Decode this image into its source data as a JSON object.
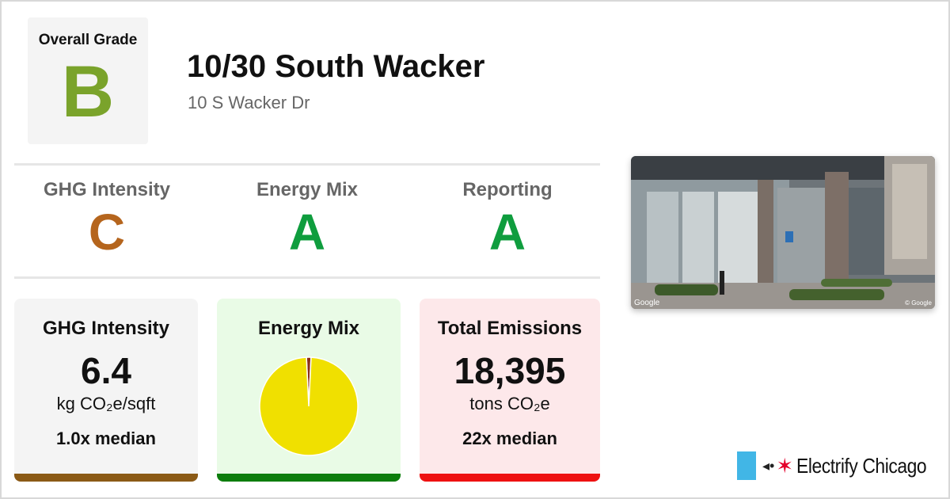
{
  "overall": {
    "label": "Overall Grade",
    "grade": "B",
    "color": "#7aa32b"
  },
  "building": {
    "name": "10/30 South Wacker",
    "address": "10 S Wacker Dr"
  },
  "sub_grades": [
    {
      "label": "GHG Intensity",
      "grade": "C",
      "color": "#b5651d"
    },
    {
      "label": "Energy Mix",
      "grade": "A",
      "color": "#0f9d3e"
    },
    {
      "label": "Reporting",
      "grade": "A",
      "color": "#0f9d3e"
    }
  ],
  "photo": {
    "attribution_left": "Google",
    "attribution_right": "© Google"
  },
  "cards": {
    "ghg": {
      "title": "GHG Intensity",
      "value": "6.4",
      "unit": "kg CO₂e/sqft",
      "median": "1.0x median",
      "bar_color": "#8b5a16"
    },
    "mix": {
      "title": "Energy Mix",
      "bar_color": "#0c7d0c"
    },
    "emissions": {
      "title": "Total Emissions",
      "value": "18,395",
      "unit": "tons CO₂e",
      "median": "22x median",
      "bar_color": "#ee1111"
    }
  },
  "chart_data": {
    "type": "pie",
    "series": [
      {
        "name": "",
        "value": 98.5,
        "color": "#f0e000"
      },
      {
        "name": "",
        "value": 1.5,
        "color": "#8b2e1a"
      }
    ]
  },
  "logo": {
    "text": "Electrify Chicago",
    "flag_color": "#41b6e6",
    "star_color": "#e4002b",
    "plug_icon": "plug-icon"
  }
}
